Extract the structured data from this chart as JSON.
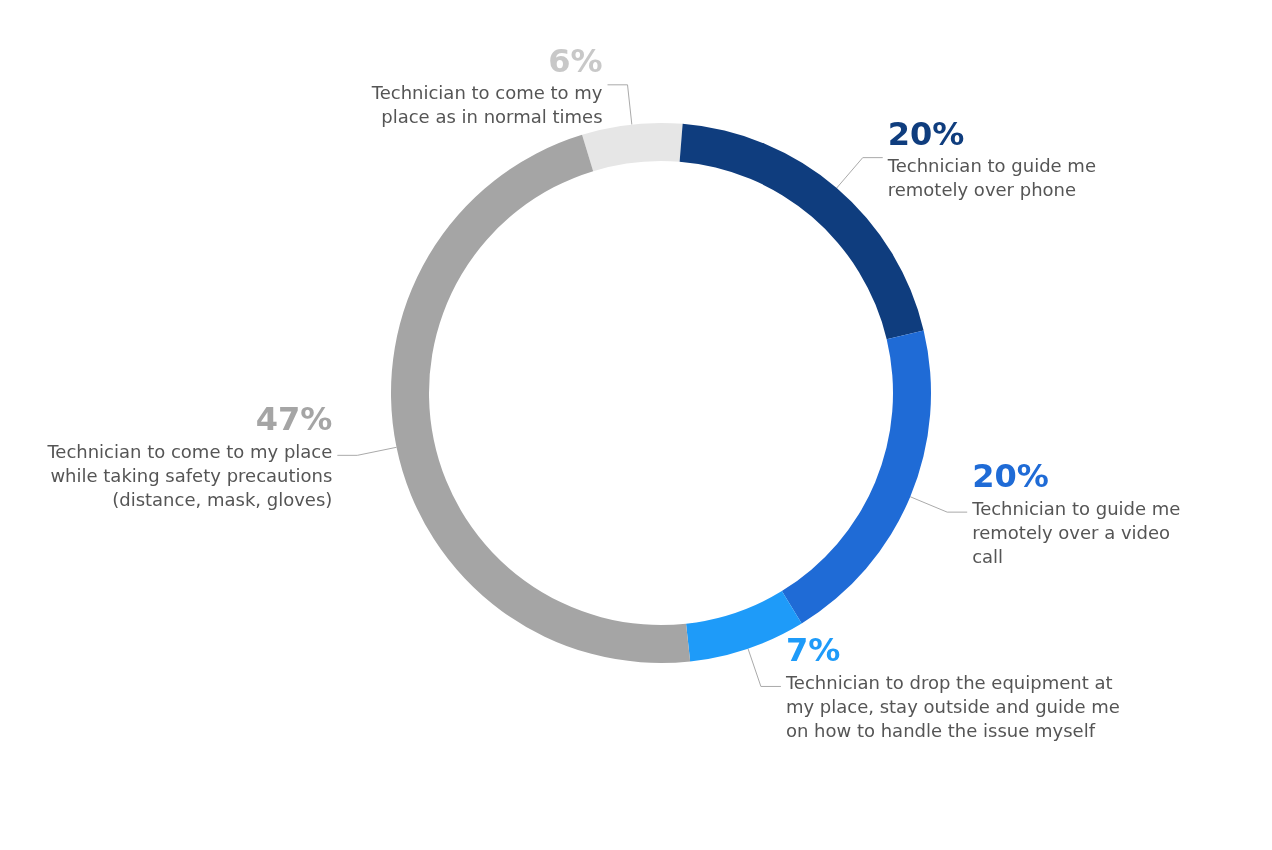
{
  "chart_data": {
    "type": "donut",
    "categories": [
      "Technician to come to my place as in normal times",
      "Technician to guide me remotely over phone",
      "Technician to guide me remotely over a video call",
      "Technician to drop the equipment at my place, stay outside and guide me on how to handle the issue myself",
      "Technician to come to my place while taking safety precautions (distance, mask, gloves)"
    ],
    "values": [
      6,
      20,
      20,
      7,
      47
    ],
    "value_labels": [
      "6%",
      "20%",
      "20%",
      "7%",
      "47%"
    ],
    "colors": [
      "#e6e6e6",
      "#0f3d7e",
      "#1f6bd6",
      "#1e9bf9",
      "#a5a5a5"
    ],
    "legend": false
  }
}
